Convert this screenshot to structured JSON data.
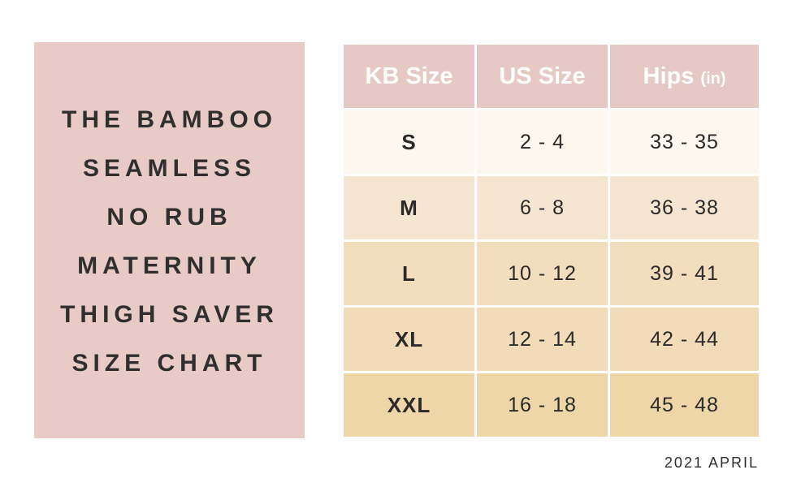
{
  "title_lines": [
    "THE BAMBOO",
    "SEAMLESS",
    "NO RUB",
    "MATERNITY",
    "THIGH SAVER",
    "SIZE CHART"
  ],
  "table": {
    "headers": {
      "kb_size": "KB Size",
      "us_size": "US Size",
      "hips": "Hips",
      "hips_unit": "(in)"
    },
    "rows": [
      {
        "kb": "S",
        "us": "2 - 4",
        "hips": "33 - 35"
      },
      {
        "kb": "M",
        "us": "6 - 8",
        "hips": "36 - 38"
      },
      {
        "kb": "L",
        "us": "10 - 12",
        "hips": "39 - 41"
      },
      {
        "kb": "XL",
        "us": "12 - 14",
        "hips": "42 - 44"
      },
      {
        "kb": "XXL",
        "us": "16 - 18",
        "hips": "45 - 48"
      }
    ]
  },
  "footer": {
    "date": "2021 APRIL"
  },
  "colors": {
    "title_panel": "#e8cbc6",
    "header_bg": "#e6c9c4",
    "row_s": "#fcf7ef",
    "row_m": "#f5e6d1",
    "row_l": "#f2ddbd",
    "row_xl": "#f2dbb8",
    "row_xxl": "#eed6a9",
    "text_dark": "#2f2f2f"
  }
}
